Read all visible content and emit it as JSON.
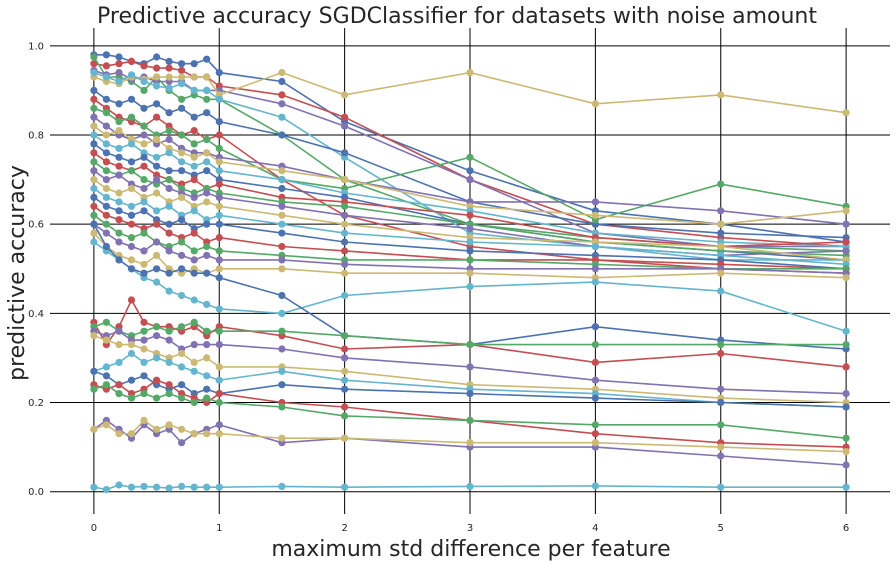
{
  "chart_data": {
    "type": "line",
    "title": "Predictive accuracy SGDClassifier for datasets with noise amount",
    "xlabel": "maximum std difference per feature",
    "ylabel": "predictive accuracy",
    "x": [
      0,
      0.1,
      0.2,
      0.3,
      0.4,
      0.5,
      0.6,
      0.7,
      0.8,
      0.9,
      1,
      1.5,
      2,
      3,
      4,
      5,
      6
    ],
    "xticks": [
      "0",
      "1",
      "2",
      "3",
      "4",
      "5",
      "6"
    ],
    "yticks": [
      "0.0",
      "0.2",
      "0.4",
      "0.6",
      "0.8",
      "1.0"
    ],
    "xlim": [
      -0.35,
      6.35
    ],
    "ylim": [
      -0.05,
      1.04
    ],
    "grid": true,
    "palette": [
      "#4c72b0",
      "#c44e52",
      "#55a868",
      "#8172b2",
      "#ccb974",
      "#64b5cd"
    ],
    "series": [
      {
        "values": [
          0.98,
          0.98,
          0.975,
          0.965,
          0.96,
          0.975,
          0.965,
          0.96,
          0.96,
          0.97,
          0.94,
          0.92,
          0.83,
          0.72,
          0.63,
          0.6,
          0.56
        ]
      },
      {
        "values": [
          0.96,
          0.955,
          0.96,
          0.965,
          0.955,
          0.95,
          0.95,
          0.945,
          0.93,
          0.93,
          0.91,
          0.89,
          0.84,
          0.7,
          0.6,
          0.57,
          0.55
        ]
      },
      {
        "values": [
          0.975,
          0.93,
          0.93,
          0.92,
          0.9,
          0.93,
          0.9,
          0.88,
          0.89,
          0.88,
          0.88,
          0.8,
          0.7,
          0.6,
          0.57,
          0.55,
          0.54
        ]
      },
      {
        "values": [
          0.945,
          0.935,
          0.94,
          0.925,
          0.93,
          0.92,
          0.92,
          0.92,
          0.9,
          0.9,
          0.9,
          0.87,
          0.82,
          0.7,
          0.58,
          0.55,
          0.55
        ]
      },
      {
        "values": [
          0.93,
          0.92,
          0.915,
          0.93,
          0.925,
          0.93,
          0.93,
          0.93,
          0.93,
          0.93,
          0.89,
          0.94,
          0.89,
          0.94,
          0.87,
          0.89,
          0.85
        ]
      },
      {
        "values": [
          0.94,
          0.93,
          0.92,
          0.935,
          0.92,
          0.91,
          0.905,
          0.915,
          0.9,
          0.9,
          0.88,
          0.84,
          0.75,
          0.58,
          0.55,
          0.52,
          0.52
        ]
      },
      {
        "values": [
          0.9,
          0.88,
          0.87,
          0.88,
          0.86,
          0.87,
          0.85,
          0.86,
          0.84,
          0.85,
          0.83,
          0.8,
          0.76,
          0.65,
          0.6,
          0.58,
          0.57
        ]
      },
      {
        "values": [
          0.88,
          0.86,
          0.84,
          0.83,
          0.82,
          0.84,
          0.82,
          0.8,
          0.81,
          0.79,
          0.8,
          0.7,
          0.62,
          0.55,
          0.52,
          0.5,
          0.49
        ]
      },
      {
        "values": [
          0.86,
          0.85,
          0.83,
          0.84,
          0.82,
          0.8,
          0.81,
          0.8,
          0.78,
          0.79,
          0.77,
          0.7,
          0.68,
          0.75,
          0.61,
          0.69,
          0.64
        ]
      },
      {
        "values": [
          0.84,
          0.82,
          0.8,
          0.79,
          0.8,
          0.78,
          0.79,
          0.77,
          0.76,
          0.76,
          0.75,
          0.73,
          0.7,
          0.65,
          0.65,
          0.63,
          0.6
        ]
      },
      {
        "values": [
          0.82,
          0.8,
          0.81,
          0.79,
          0.78,
          0.79,
          0.77,
          0.76,
          0.75,
          0.76,
          0.74,
          0.72,
          0.7,
          0.64,
          0.62,
          0.6,
          0.63
        ]
      },
      {
        "values": [
          0.8,
          0.78,
          0.77,
          0.78,
          0.76,
          0.75,
          0.76,
          0.74,
          0.73,
          0.74,
          0.72,
          0.7,
          0.67,
          0.63,
          0.58,
          0.56,
          0.55
        ]
      },
      {
        "values": [
          0.78,
          0.76,
          0.75,
          0.74,
          0.75,
          0.73,
          0.72,
          0.72,
          0.71,
          0.72,
          0.7,
          0.68,
          0.66,
          0.6,
          0.56,
          0.54,
          0.52
        ]
      },
      {
        "values": [
          0.76,
          0.74,
          0.73,
          0.72,
          0.73,
          0.71,
          0.7,
          0.69,
          0.7,
          0.68,
          0.69,
          0.66,
          0.65,
          0.62,
          0.57,
          0.55,
          0.56
        ]
      },
      {
        "values": [
          0.74,
          0.72,
          0.71,
          0.72,
          0.7,
          0.69,
          0.7,
          0.68,
          0.67,
          0.68,
          0.67,
          0.65,
          0.64,
          0.6,
          0.56,
          0.54,
          0.53
        ]
      },
      {
        "values": [
          0.72,
          0.7,
          0.71,
          0.69,
          0.68,
          0.7,
          0.68,
          0.67,
          0.66,
          0.67,
          0.66,
          0.64,
          0.62,
          0.59,
          0.55,
          0.53,
          0.54
        ]
      },
      {
        "values": [
          0.7,
          0.68,
          0.67,
          0.68,
          0.66,
          0.67,
          0.65,
          0.66,
          0.64,
          0.65,
          0.64,
          0.62,
          0.6,
          0.57,
          0.56,
          0.55,
          0.52
        ]
      },
      {
        "values": [
          0.68,
          0.66,
          0.65,
          0.64,
          0.65,
          0.63,
          0.64,
          0.62,
          0.63,
          0.61,
          0.62,
          0.6,
          0.58,
          0.56,
          0.55,
          0.53,
          0.51
        ]
      },
      {
        "values": [
          0.66,
          0.64,
          0.63,
          0.62,
          0.63,
          0.61,
          0.6,
          0.61,
          0.59,
          0.6,
          0.6,
          0.58,
          0.56,
          0.54,
          0.53,
          0.52,
          0.5
        ]
      },
      {
        "values": [
          0.64,
          0.62,
          0.61,
          0.6,
          0.59,
          0.6,
          0.58,
          0.57,
          0.58,
          0.56,
          0.57,
          0.55,
          0.54,
          0.52,
          0.52,
          0.51,
          0.5
        ]
      },
      {
        "values": [
          0.62,
          0.6,
          0.58,
          0.57,
          0.58,
          0.56,
          0.55,
          0.56,
          0.54,
          0.55,
          0.54,
          0.53,
          0.52,
          0.52,
          0.51,
          0.5,
          0.5
        ]
      },
      {
        "values": [
          0.6,
          0.58,
          0.56,
          0.55,
          0.54,
          0.56,
          0.54,
          0.53,
          0.52,
          0.53,
          0.52,
          0.52,
          0.51,
          0.5,
          0.5,
          0.5,
          0.49
        ]
      },
      {
        "values": [
          0.58,
          0.55,
          0.53,
          0.52,
          0.51,
          0.53,
          0.5,
          0.49,
          0.5,
          0.49,
          0.5,
          0.5,
          0.49,
          0.49,
          0.48,
          0.49,
          0.48
        ]
      },
      {
        "values": [
          0.56,
          0.54,
          0.52,
          0.5,
          0.48,
          0.47,
          0.45,
          0.44,
          0.43,
          0.42,
          0.41,
          0.4,
          0.44,
          0.46,
          0.47,
          0.45,
          0.36
        ]
      },
      {
        "values": [
          0.6,
          0.55,
          0.52,
          0.5,
          0.49,
          0.5,
          0.49,
          0.5,
          0.49,
          0.49,
          0.48,
          0.44,
          0.35,
          0.33,
          0.37,
          0.34,
          0.32
        ]
      },
      {
        "values": [
          0.38,
          0.33,
          0.37,
          0.43,
          0.38,
          0.37,
          0.37,
          0.36,
          0.37,
          0.35,
          0.37,
          0.35,
          0.32,
          0.33,
          0.29,
          0.31,
          0.28
        ]
      },
      {
        "values": [
          0.37,
          0.38,
          0.36,
          0.35,
          0.36,
          0.37,
          0.36,
          0.37,
          0.38,
          0.36,
          0.36,
          0.36,
          0.35,
          0.33,
          0.33,
          0.33,
          0.33
        ]
      },
      {
        "values": [
          0.36,
          0.35,
          0.36,
          0.34,
          0.34,
          0.35,
          0.34,
          0.32,
          0.33,
          0.33,
          0.33,
          0.32,
          0.3,
          0.28,
          0.25,
          0.23,
          0.22
        ]
      },
      {
        "values": [
          0.35,
          0.34,
          0.33,
          0.33,
          0.32,
          0.31,
          0.3,
          0.31,
          0.29,
          0.3,
          0.28,
          0.28,
          0.27,
          0.24,
          0.23,
          0.21,
          0.2
        ]
      },
      {
        "values": [
          0.27,
          0.28,
          0.29,
          0.31,
          0.29,
          0.3,
          0.29,
          0.28,
          0.27,
          0.26,
          0.25,
          0.27,
          0.25,
          0.23,
          0.22,
          0.2,
          0.19
        ]
      },
      {
        "values": [
          0.27,
          0.26,
          0.24,
          0.25,
          0.26,
          0.24,
          0.23,
          0.24,
          0.22,
          0.23,
          0.22,
          0.24,
          0.23,
          0.22,
          0.21,
          0.2,
          0.19
        ]
      },
      {
        "values": [
          0.24,
          0.23,
          0.24,
          0.22,
          0.23,
          0.25,
          0.24,
          0.22,
          0.21,
          0.2,
          0.22,
          0.2,
          0.19,
          0.16,
          0.13,
          0.11,
          0.1
        ]
      },
      {
        "values": [
          0.23,
          0.24,
          0.22,
          0.21,
          0.22,
          0.21,
          0.22,
          0.21,
          0.2,
          0.21,
          0.2,
          0.19,
          0.17,
          0.16,
          0.15,
          0.15,
          0.12
        ]
      },
      {
        "values": [
          0.14,
          0.16,
          0.14,
          0.12,
          0.15,
          0.13,
          0.14,
          0.11,
          0.13,
          0.14,
          0.15,
          0.11,
          0.12,
          0.1,
          0.1,
          0.08,
          0.06
        ]
      },
      {
        "values": [
          0.14,
          0.15,
          0.13,
          0.13,
          0.16,
          0.14,
          0.15,
          0.14,
          0.13,
          0.13,
          0.13,
          0.12,
          0.12,
          0.11,
          0.11,
          0.1,
          0.09
        ]
      },
      {
        "values": [
          0.01,
          0.005,
          0.015,
          0.01,
          0.012,
          0.01,
          0.008,
          0.012,
          0.01,
          0.01,
          0.01,
          0.012,
          0.01,
          0.012,
          0.013,
          0.01,
          0.01
        ]
      }
    ]
  }
}
